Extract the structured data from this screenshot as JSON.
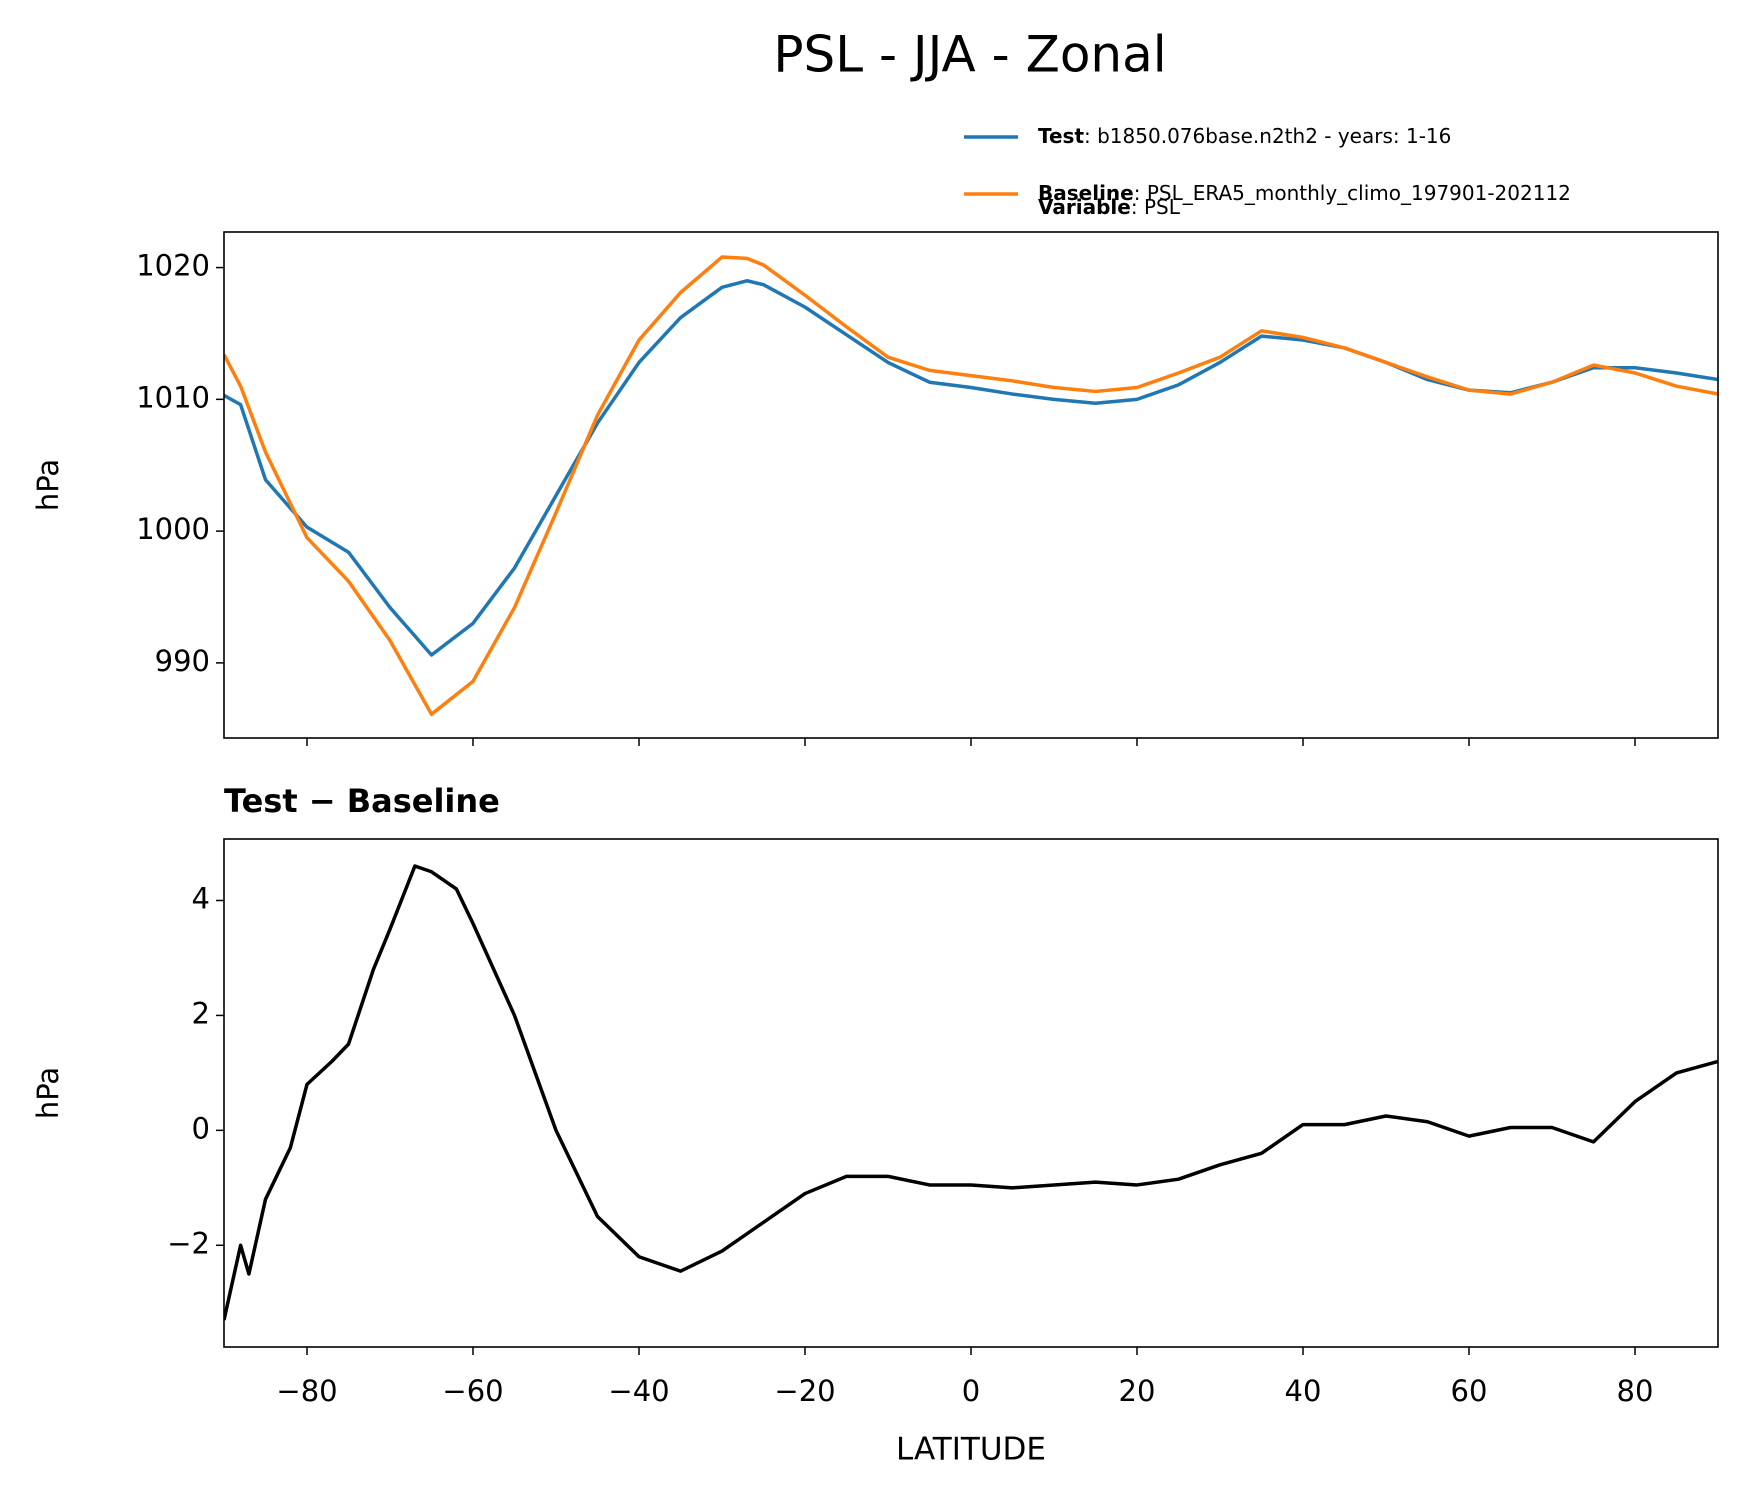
{
  "title": "PSL - JJA - Zonal",
  "chart_data": [
    {
      "type": "line",
      "ylabel": "hPa",
      "legend": "upper right outside",
      "legend_note": {
        "name": "Variable",
        "label": ": PSL"
      },
      "x": [
        -90,
        -88,
        -85,
        -80,
        -75,
        -70,
        -65,
        -60,
        -55,
        -50,
        -45,
        -40,
        -35,
        -30,
        -27,
        -25,
        -20,
        -15,
        -10,
        -5,
        0,
        5,
        10,
        15,
        20,
        25,
        30,
        35,
        40,
        45,
        50,
        55,
        60,
        65,
        70,
        75,
        80,
        85,
        90
      ],
      "series": [
        {
          "name": "Test",
          "label": ": b1850.076base.n2th2 - years: 1-16",
          "color": "#1f77b4",
          "values": [
            1010.3,
            1009.6,
            1003.9,
            1000.3,
            998.4,
            994.2,
            990.6,
            993,
            997.2,
            1002.7,
            1008.2,
            1012.8,
            1016.2,
            1018.5,
            1019,
            1018.7,
            1017,
            1014.9,
            1012.8,
            1011.3,
            1010.9,
            1010.4,
            1010,
            1009.7,
            1010,
            1011.1,
            1012.8,
            1014.8,
            1014.5,
            1013.9,
            1012.8,
            1011.5,
            1010.7,
            1010.5,
            1011.3,
            1012.4,
            1012.4,
            1012,
            1011.5
          ]
        },
        {
          "name": "Baseline",
          "label": ": PSL_ERA5_monthly_climo_197901-202112",
          "color": "#ff7f0e",
          "values": [
            1013.4,
            1011,
            1006,
            999.5,
            996.2,
            991.7,
            986.1,
            988.6,
            994.2,
            1001.4,
            1008.8,
            1014.5,
            1018.1,
            1020.8,
            1020.7,
            1020.2,
            1017.9,
            1015.5,
            1013.2,
            1012.2,
            1011.8,
            1011.4,
            1010.9,
            1010.6,
            1010.9,
            1012,
            1013.2,
            1015.2,
            1014.7,
            1013.9,
            1012.8,
            1011.7,
            1010.7,
            1010.4,
            1011.3,
            1012.6,
            1012,
            1011,
            1010.4
          ]
        }
      ],
      "xlim": [
        -90,
        90
      ],
      "xticks": [
        -80,
        -60,
        -40,
        -20,
        0,
        20,
        40,
        60,
        80
      ],
      "ylim": [
        984.3,
        1022.7
      ],
      "yticks": [
        990,
        1000,
        1010,
        1020
      ]
    },
    {
      "type": "line",
      "title": "Test − Baseline",
      "ylabel": "hPa",
      "xlabel": "LATITUDE",
      "x": [
        -90,
        -88,
        -87,
        -85,
        -82,
        -80,
        -77,
        -75,
        -72,
        -70,
        -67,
        -65,
        -62,
        -60,
        -55,
        -50,
        -45,
        -40,
        -35,
        -30,
        -25,
        -20,
        -15,
        -10,
        -5,
        0,
        5,
        10,
        15,
        20,
        25,
        30,
        35,
        40,
        45,
        50,
        55,
        60,
        65,
        70,
        75,
        80,
        85,
        90
      ],
      "series": [
        {
          "color": "#000000",
          "values": [
            -3.3,
            -2,
            -2.5,
            -1.2,
            -0.3,
            0.8,
            1.2,
            1.5,
            2.8,
            3.5,
            4.6,
            4.5,
            4.2,
            3.6,
            2,
            0,
            -1.5,
            -2.2,
            -2.45,
            -2.1,
            -1.6,
            -1.1,
            -0.8,
            -0.8,
            -0.95,
            -0.95,
            -1,
            -0.95,
            -0.9,
            -0.95,
            -0.85,
            -0.6,
            -0.4,
            0.1,
            0.1,
            0.25,
            0.15,
            -0.1,
            0.05,
            0.05,
            -0.2,
            0.5,
            1,
            1.2
          ]
        }
      ],
      "xlim": [
        -90,
        90
      ],
      "xticks": [
        {
          "value": -80,
          "label": "−80"
        },
        {
          "value": -60,
          "label": "−60"
        },
        {
          "value": -40,
          "label": "−40"
        },
        {
          "value": -20,
          "label": "−20"
        },
        0,
        20,
        40,
        60,
        80
      ],
      "ylim": [
        -3.77,
        5.07
      ],
      "yticks": [
        {
          "value": -2,
          "label": "−2"
        },
        0,
        2,
        4
      ]
    }
  ]
}
